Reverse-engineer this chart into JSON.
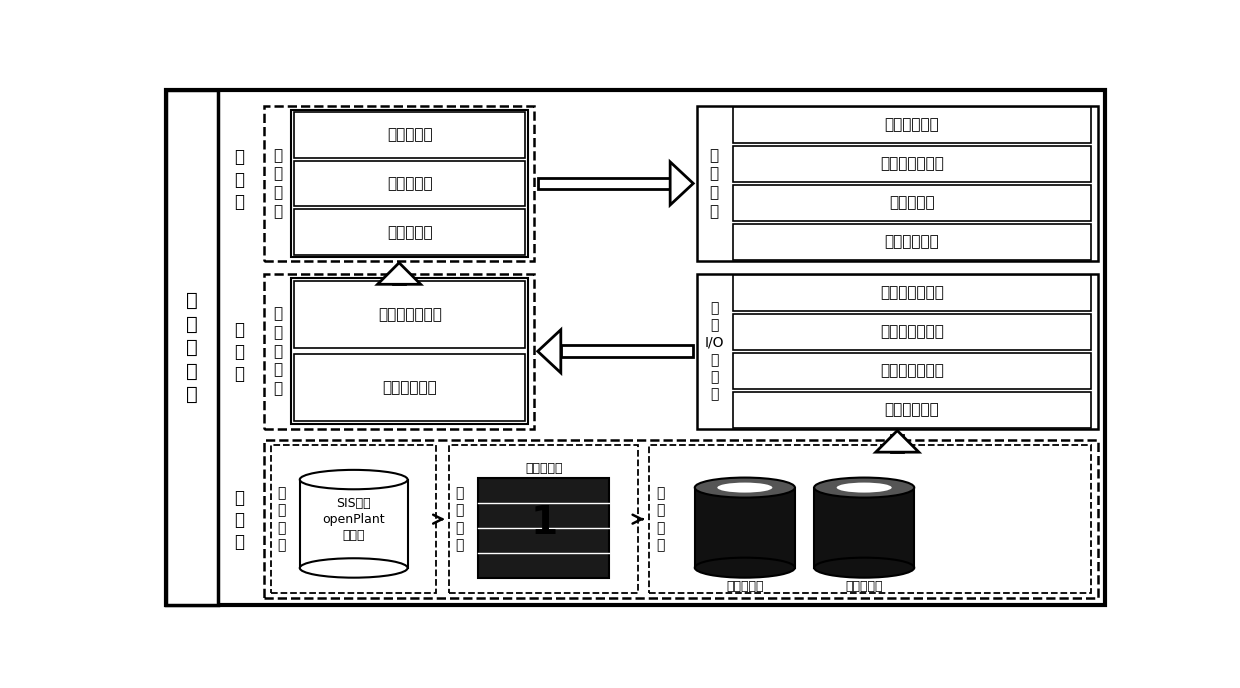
{
  "bg_color": "#ffffff",
  "left_label": "整\n体\n架\n构\n图",
  "layer_labels": [
    "应\n用\n层",
    "中\n间\n层",
    "数\n据\n层"
  ],
  "diag_label": "状\n态\n诊\n断",
  "diag_items": [
    "异常值判断",
    "安全性评价",
    "经济性评价"
  ],
  "opt_label": "优\n化\n决\n策",
  "opt_items": [
    "异常参数管理",
    "优化可调值寻优",
    "案例库管理",
    "优化方案管理"
  ],
  "calc_label": "计\n算\n处\n理\n层",
  "calc_items": [
    "数据预处理算法",
    "优化模型计算"
  ],
  "io_label": "数\n据\nI/O\n操\n作\n层",
  "io_items": [
    "实时数据库平台",
    "历史数据库平台",
    "运行数据库平台",
    "数据管理平台"
  ],
  "src_label": "数\n据\n来\n源",
  "src_content": "SIS系统\nopenPlant\n数据库",
  "transfer_label": "数\n据\n转\n发",
  "transfer_content": "中转服务器",
  "mgmt_label": "数\n据\n管\n理",
  "mgmt_items": [
    "实时数据库",
    "历史数据库"
  ]
}
